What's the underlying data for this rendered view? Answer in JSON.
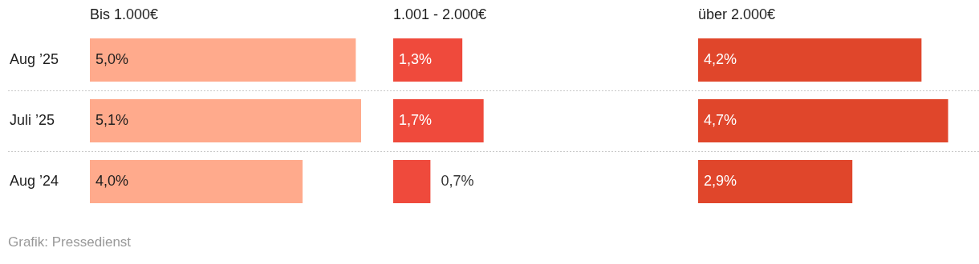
{
  "chart_data": [
    {
      "type": "bar",
      "orientation": "horizontal",
      "title": "Bis 1.000€",
      "categories": [
        "Aug ’25",
        "Juli ’25",
        "Aug ’24"
      ],
      "values": [
        5.0,
        5.1,
        4.0
      ],
      "color": "#ffaa8c",
      "value_labels": [
        "5,0%",
        "5,1%",
        "4,0%"
      ],
      "tick_labels": "y",
      "grid": "y",
      "annotations": [
        "Grafik: Pressedienst"
      ]
    },
    {
      "type": "bar",
      "orientation": "horizontal",
      "title": "1.001 - 2.000€",
      "categories": [
        null,
        null,
        null
      ],
      "values": [
        1.3,
        1.7,
        0.7
      ],
      "color": "#ef4a3c",
      "value_labels": [
        "1,3%",
        "1,7%",
        "0,7%"
      ],
      "tick_labels": false,
      "grid": "y"
    },
    {
      "type": "bar",
      "orientation": "horizontal",
      "title": "über 2.000€",
      "categories": [
        null,
        null,
        null
      ],
      "values": [
        4.2,
        4.7,
        2.9
      ],
      "color": "#e0462b",
      "value_labels": [
        "4,2%",
        "4,7%",
        "2,9%"
      ],
      "tick_labels": false,
      "grid": "y"
    }
  ]
}
